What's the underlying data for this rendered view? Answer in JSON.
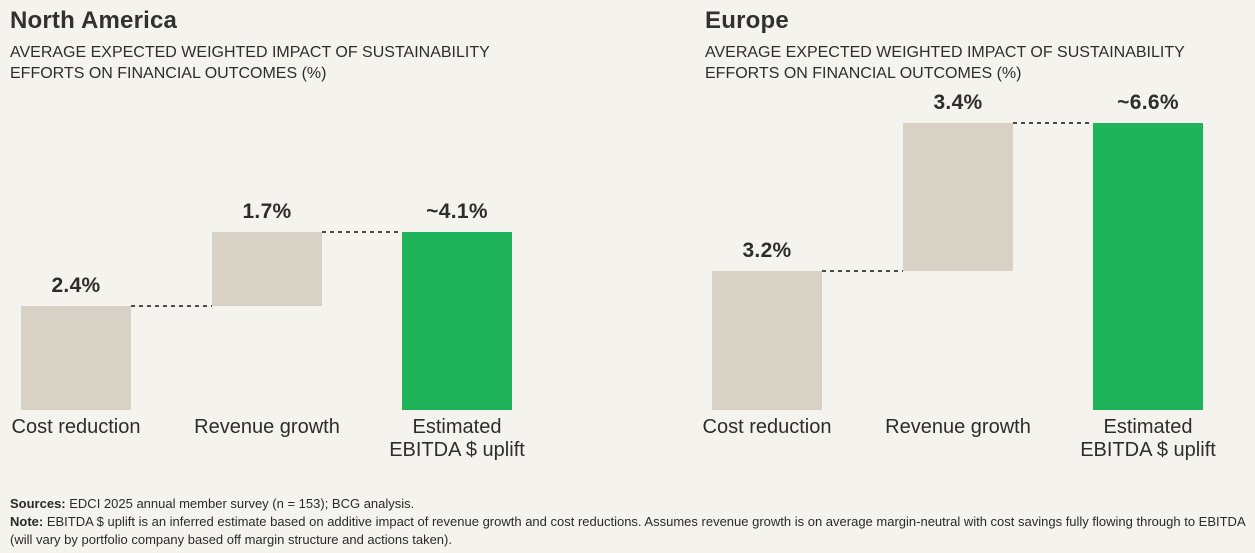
{
  "page": {
    "background": "#f5f3ee",
    "text_color": "#2e2d2b",
    "bar_beige": "#d8d1c6",
    "accent_green": "#1fb45a",
    "dash_color": "#4c4c4c"
  },
  "chart_data": [
    {
      "type": "bar",
      "variant": "waterfall",
      "title": "North America",
      "subtitle": "AVERAGE EXPECTED WEIGHTED IMPACT OF SUSTAINABILITY\nEFFORTS ON FINANCIAL OUTCOMES (%)",
      "categories": [
        "Cost reduction",
        "Revenue growth",
        "Estimated EBITDA $ uplift"
      ],
      "category_lines": [
        [
          "Cost reduction"
        ],
        [
          "Revenue growth"
        ],
        [
          "Estimated",
          "EBITDA $ uplift"
        ]
      ],
      "values": [
        2.4,
        1.7,
        4.1
      ],
      "value_labels": [
        "2.4%",
        "1.7%",
        "~4.1%"
      ],
      "roles": [
        "increase",
        "increase",
        "total"
      ],
      "bar_colors": [
        "#d8d1c6",
        "#d8d1c6",
        "#1fb45a"
      ],
      "xlabel": "",
      "ylabel": "",
      "ylim": [
        0,
        7.2
      ],
      "grid": false,
      "legend": false,
      "connector_style": "dashed"
    },
    {
      "type": "bar",
      "variant": "waterfall",
      "title": "Europe",
      "subtitle": "AVERAGE EXPECTED WEIGHTED IMPACT OF SUSTAINABILITY\nEFFORTS ON FINANCIAL OUTCOMES (%)",
      "categories": [
        "Cost reduction",
        "Revenue growth",
        "Estimated EBITDA $ uplift"
      ],
      "category_lines": [
        [
          "Cost reduction"
        ],
        [
          "Revenue growth"
        ],
        [
          "Estimated",
          "EBITDA $ uplift"
        ]
      ],
      "values": [
        3.2,
        3.4,
        6.6
      ],
      "value_labels": [
        "3.2%",
        "3.4%",
        "~6.6%"
      ],
      "roles": [
        "increase",
        "increase",
        "total"
      ],
      "bar_colors": [
        "#d8d1c6",
        "#d8d1c6",
        "#1fb45a"
      ],
      "xlabel": "",
      "ylabel": "",
      "ylim": [
        0,
        7.2
      ],
      "grid": false,
      "legend": false,
      "connector_style": "dashed"
    }
  ],
  "footer": {
    "sources_label": "Sources:",
    "sources_text": " EDCI 2025 annual member survey (n = 153); BCG analysis.",
    "note_label": "Note:",
    "note_text": " EBITDA $ uplift is an inferred estimate based on additive impact of revenue growth and cost reductions. Assumes revenue growth is on average margin-neutral with cost savings fully flowing through to EBITDA (will vary by portfolio company based off margin structure and actions taken)."
  }
}
